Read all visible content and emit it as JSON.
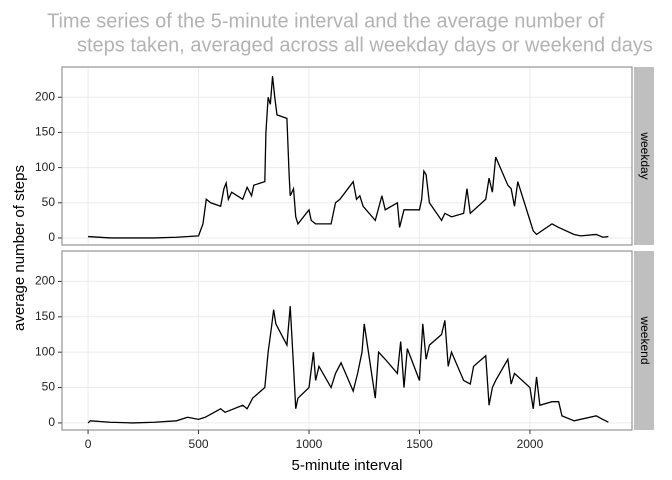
{
  "chart_data": {
    "type": "line",
    "title": [
      "Time series of the 5-minute interval and the average number of",
      "steps taken, averaged across all weekday days or weekend days"
    ],
    "x_label": "5-minute interval",
    "y_label": "average number of steps",
    "xlim": [
      -118,
      2462
    ],
    "xticks": [
      0,
      500,
      1000,
      1500,
      2000
    ],
    "ylim": [
      -10,
      243
    ],
    "yticks": [
      0,
      50,
      100,
      150,
      200
    ],
    "grid": true,
    "series": [
      {
        "name": "weekday",
        "color": "#000000",
        "x": [
          0,
          100,
          200,
          300,
          400,
          500,
          520,
          535,
          555,
          600,
          615,
          625,
          635,
          650,
          700,
          720,
          740,
          750,
          800,
          805,
          815,
          825,
          835,
          845,
          855,
          900,
          910,
          915,
          930,
          940,
          950,
          1000,
          1010,
          1030,
          1100,
          1120,
          1140,
          1200,
          1215,
          1230,
          1245,
          1300,
          1330,
          1345,
          1400,
          1410,
          1430,
          1500,
          1510,
          1520,
          1530,
          1545,
          1600,
          1615,
          1645,
          1700,
          1715,
          1730,
          1800,
          1815,
          1830,
          1845,
          1900,
          1915,
          1930,
          1945,
          2000,
          2015,
          2030,
          2100,
          2130,
          2200,
          2230,
          2300,
          2330,
          2355
        ],
        "values": [
          2,
          0,
          0,
          0,
          1,
          3,
          20,
          55,
          50,
          45,
          70,
          78,
          55,
          65,
          55,
          72,
          60,
          75,
          80,
          150,
          200,
          190,
          230,
          200,
          175,
          170,
          90,
          60,
          70,
          30,
          20,
          40,
          25,
          20,
          20,
          50,
          55,
          80,
          55,
          60,
          45,
          25,
          60,
          40,
          50,
          15,
          40,
          40,
          55,
          95,
          90,
          50,
          25,
          35,
          30,
          35,
          70,
          35,
          55,
          85,
          65,
          115,
          75,
          70,
          45,
          80,
          25,
          10,
          5,
          20,
          15,
          5,
          3,
          5,
          1,
          2
        ]
      },
      {
        "name": "weekend",
        "color": "#000000",
        "x": [
          0,
          10,
          100,
          200,
          300,
          400,
          450,
          500,
          530,
          600,
          620,
          700,
          720,
          745,
          800,
          815,
          830,
          840,
          850,
          900,
          915,
          930,
          940,
          950,
          1000,
          1020,
          1030,
          1045,
          1100,
          1120,
          1145,
          1200,
          1220,
          1240,
          1250,
          1300,
          1315,
          1345,
          1400,
          1415,
          1430,
          1445,
          1500,
          1515,
          1530,
          1545,
          1600,
          1615,
          1630,
          1645,
          1700,
          1730,
          1745,
          1800,
          1815,
          1830,
          1845,
          1900,
          1915,
          1930,
          2000,
          2015,
          2030,
          2045,
          2100,
          2130,
          2145,
          2200,
          2300,
          2330,
          2355
        ],
        "values": [
          0,
          3,
          1,
          0,
          1,
          3,
          8,
          5,
          8,
          20,
          15,
          25,
          20,
          35,
          50,
          100,
          135,
          160,
          140,
          110,
          165,
          80,
          20,
          35,
          50,
          100,
          60,
          80,
          50,
          70,
          85,
          45,
          70,
          100,
          140,
          35,
          100,
          90,
          70,
          115,
          50,
          105,
          60,
          140,
          90,
          110,
          125,
          145,
          80,
          100,
          60,
          55,
          80,
          95,
          25,
          50,
          60,
          90,
          55,
          70,
          50,
          20,
          65,
          25,
          30,
          30,
          10,
          3,
          10,
          5,
          1
        ]
      }
    ]
  }
}
